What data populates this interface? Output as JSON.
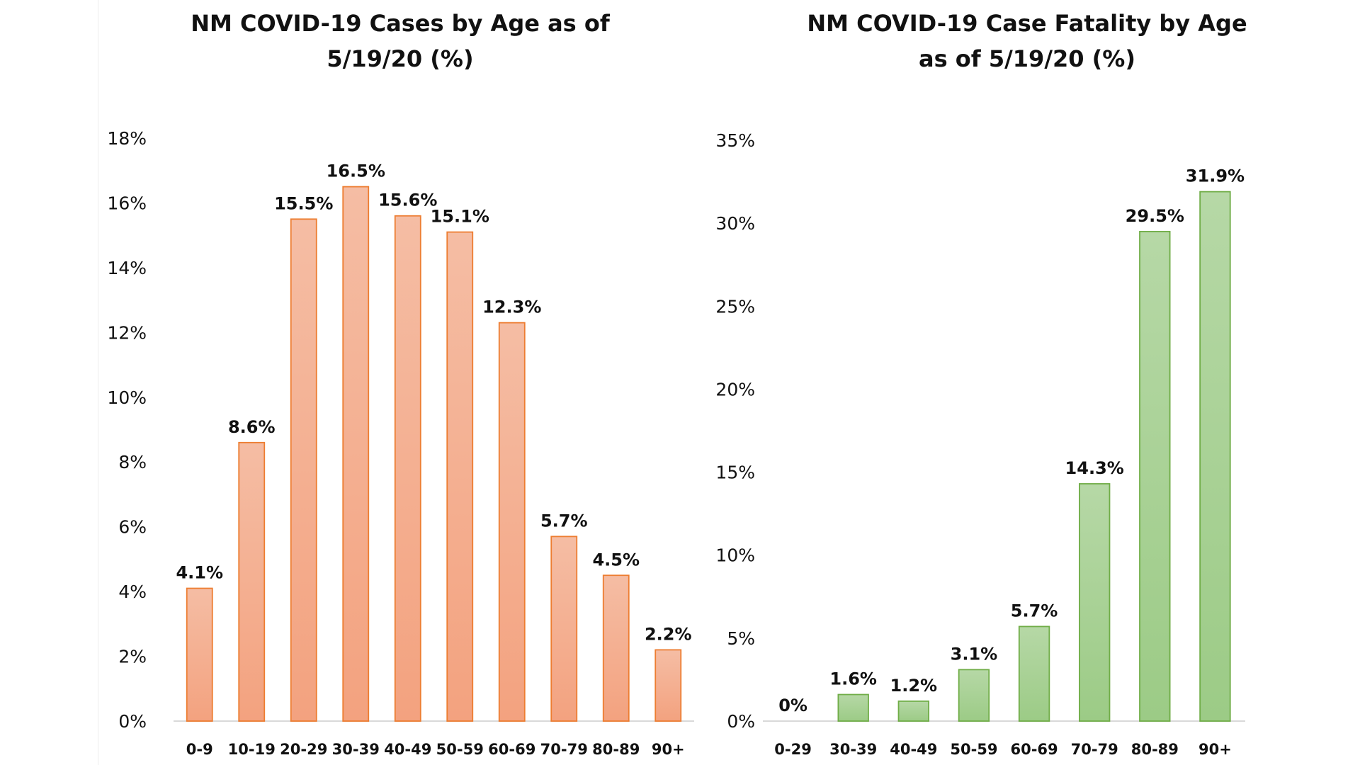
{
  "charts": [
    {
      "title_line1": "NM COVID-19 Cases by Age as of",
      "title_line2": "5/19/20 (%)"
    },
    {
      "title_line1": "NM COVID-19 Case Fatality by Age",
      "title_line2": "as of 5/19/20 (%)"
    }
  ],
  "chart_data": [
    {
      "type": "bar",
      "title": "NM COVID-19 Cases by Age as of 5/19/20 (%)",
      "categories": [
        "0-9",
        "10-19",
        "20-29",
        "30-39",
        "40-49",
        "50-59",
        "60-69",
        "70-79",
        "80-89",
        "90+"
      ],
      "values": [
        4.1,
        8.6,
        15.5,
        16.5,
        15.6,
        15.1,
        12.3,
        5.7,
        4.5,
        2.2
      ],
      "data_labels": [
        "4.1%",
        "8.6%",
        "15.5%",
        "16.5%",
        "15.6%",
        "15.1%",
        "12.3%",
        "5.7%",
        "4.5%",
        "2.2%"
      ],
      "ylim": [
        0,
        18
      ],
      "yticks": [
        0,
        2,
        4,
        6,
        8,
        10,
        12,
        14,
        16,
        18
      ],
      "ytick_labels": [
        "0%",
        "2%",
        "4%",
        "6%",
        "8%",
        "10%",
        "12%",
        "14%",
        "16%",
        "18%"
      ],
      "xlabel": "",
      "ylabel": "",
      "grid": false,
      "legend": "none",
      "bar_fill_top": "#f5bda4",
      "bar_fill_bottom": "#f3a27f",
      "bar_stroke": "#ed7d31"
    },
    {
      "type": "bar",
      "title": "NM COVID-19 Case Fatality by Age as of 5/19/20 (%)",
      "categories": [
        "0-29",
        "30-39",
        "40-49",
        "50-59",
        "60-69",
        "70-79",
        "80-89",
        "90+"
      ],
      "values": [
        0,
        1.6,
        1.2,
        3.1,
        5.7,
        14.3,
        29.5,
        31.9
      ],
      "data_labels": [
        "0%",
        "1.6%",
        "1.2%",
        "3.1%",
        "5.7%",
        "14.3%",
        "29.5%",
        "31.9%"
      ],
      "ylim": [
        0,
        35
      ],
      "yticks": [
        0,
        5,
        10,
        15,
        20,
        25,
        30,
        35
      ],
      "ytick_labels": [
        "0%",
        "5%",
        "10%",
        "15%",
        "20%",
        "25%",
        "30%",
        "35%"
      ],
      "xlabel": "",
      "ylabel": "",
      "grid": false,
      "legend": "none",
      "bar_fill_top": "#b6d8a6",
      "bar_fill_bottom": "#9ccb86",
      "bar_stroke": "#70ad47"
    }
  ]
}
